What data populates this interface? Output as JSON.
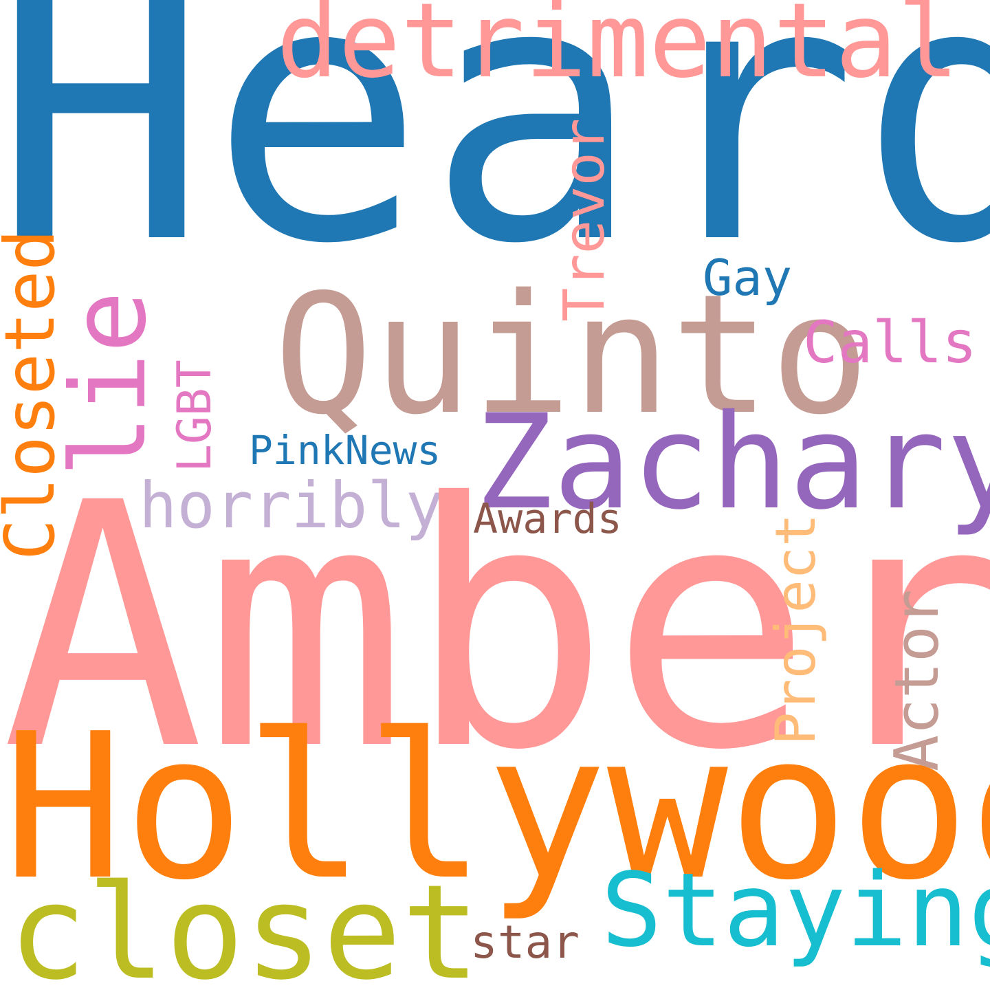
{
  "words": {
    "heard": {
      "text": "Heard",
      "color": "#1f77b4"
    },
    "amber": {
      "text": "Amber",
      "color": "#ff9896"
    },
    "hollywood": {
      "text": "Hollywood",
      "color": "#ff7f0e"
    },
    "quinto": {
      "text": "Quinto",
      "color": "#c49c94"
    },
    "zachary": {
      "text": "Zachary",
      "color": "#9467bd"
    },
    "detrimental": {
      "text": "detrimental",
      "color": "#ff9896"
    },
    "closet": {
      "text": "closet",
      "color": "#bcbd22"
    },
    "staying": {
      "text": "Staying",
      "color": "#17becf"
    },
    "lie": {
      "text": "lie",
      "color": "#e377c2"
    },
    "closeted": {
      "text": "Closeted",
      "color": "#ff7f0e"
    },
    "trevor": {
      "text": "Trevor",
      "color": "#ff9896"
    },
    "horribly": {
      "text": "horribly",
      "color": "#c5b0d5"
    },
    "project": {
      "text": "Project",
      "color": "#ffbb78"
    },
    "actor": {
      "text": "Actor",
      "color": "#c49c94"
    },
    "calls": {
      "text": "Calls",
      "color": "#e377c2"
    },
    "gay": {
      "text": "Gay",
      "color": "#1f77b4"
    },
    "lgbt": {
      "text": "LGBT",
      "color": "#e377c2"
    },
    "pinknews": {
      "text": "PinkNews",
      "color": "#1f77b4"
    },
    "awards": {
      "text": "Awards",
      "color": "#8c564b"
    },
    "star": {
      "text": "star",
      "color": "#8c564b"
    }
  }
}
